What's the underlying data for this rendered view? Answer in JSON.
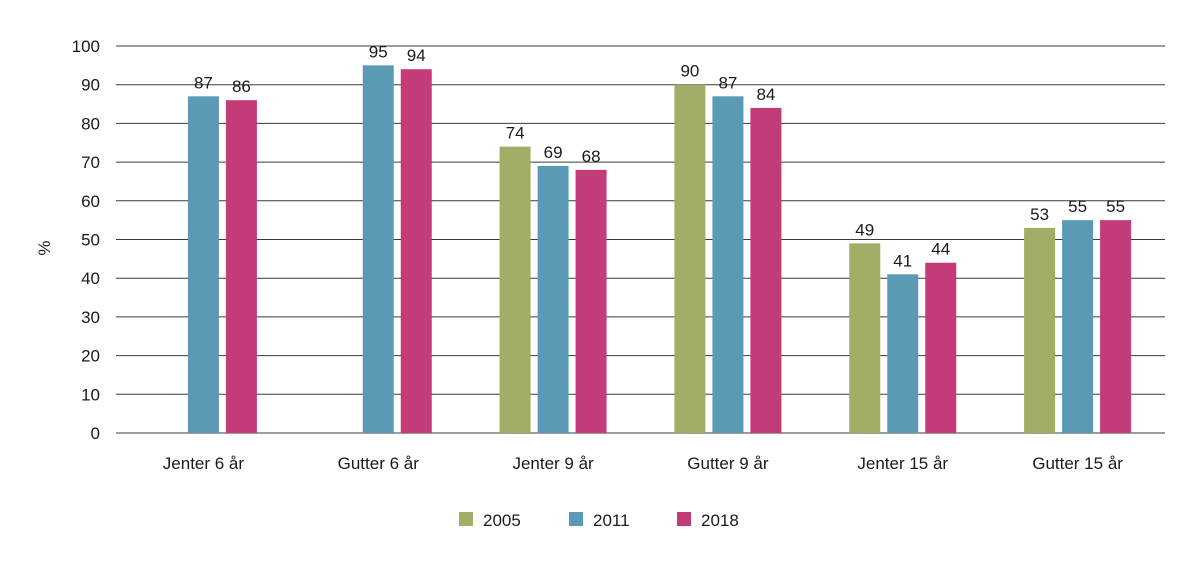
{
  "chart_data": {
    "type": "bar",
    "title": "",
    "xlabel": "",
    "ylabel": "%",
    "ylim": [
      0,
      100
    ],
    "yticks": [
      0,
      10,
      20,
      30,
      40,
      50,
      60,
      70,
      80,
      90,
      100
    ],
    "grid": true,
    "legend_position": "bottom",
    "categories": [
      "Jenter 6 år",
      "Gutter 6 år",
      "Jenter 9 år",
      "Gutter 9 år",
      "Jenter 15 år",
      "Gutter 15 år"
    ],
    "series": [
      {
        "name": "2005",
        "color": "#a2ad65",
        "values": [
          null,
          null,
          74,
          90,
          49,
          53
        ]
      },
      {
        "name": "2011",
        "color": "#5b9ab5",
        "values": [
          87,
          95,
          69,
          87,
          41,
          55
        ]
      },
      {
        "name": "2018",
        "color": "#c33b79",
        "values": [
          86,
          94,
          68,
          84,
          44,
          55
        ]
      }
    ]
  }
}
